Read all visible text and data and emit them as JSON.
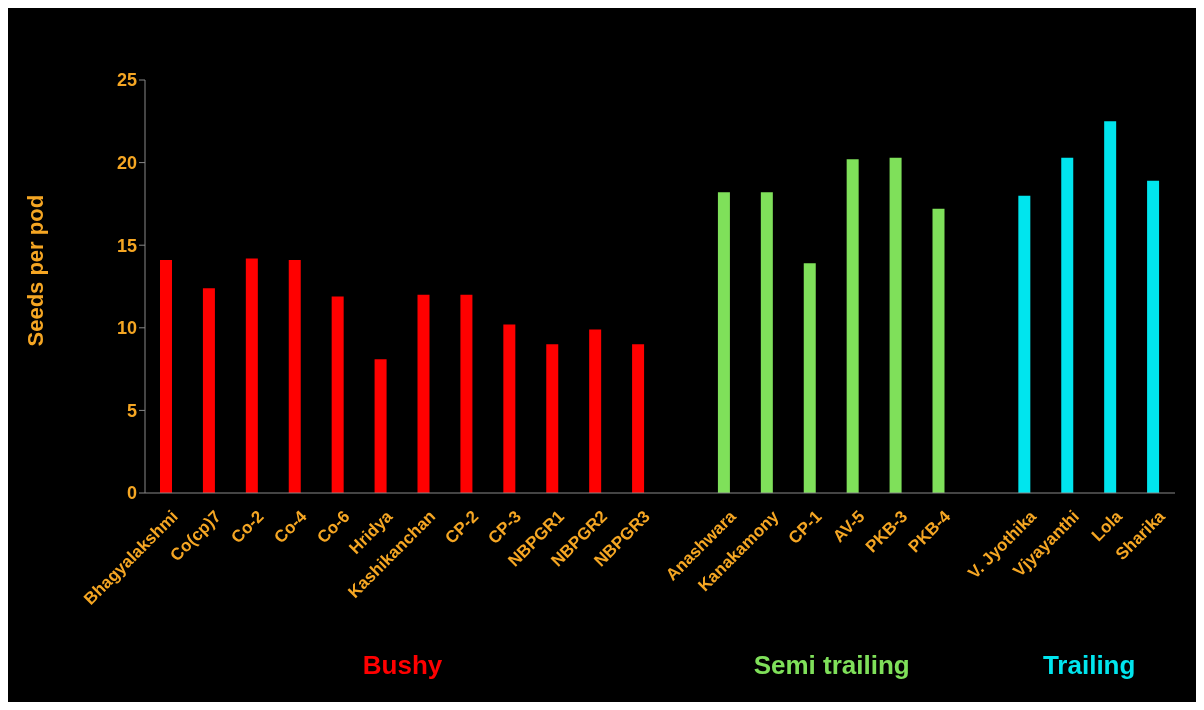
{
  "chart_data": {
    "type": "bar",
    "ylabel": "Seeds per pod",
    "categories": [
      "Bhagyalakshmi",
      "Co(cp)7",
      "Co-2",
      "Co-4",
      "Co-6",
      "Hridya",
      "Kashikanchan",
      "CP-2",
      "CP-3",
      "NBPGR1",
      "NBPGR2",
      "NBPGR3",
      null,
      "Anashwara",
      "Kanakamony",
      "CP-1",
      "AV-5",
      "PKB-3",
      "PKB-4",
      null,
      "V. Jyothika",
      "Vjyayanthi",
      "Lola",
      "Sharika"
    ],
    "values": [
      14.1,
      12.4,
      14.2,
      14.1,
      11.9,
      8.1,
      12.0,
      12.0,
      10.2,
      9.0,
      9.9,
      9.0,
      null,
      18.2,
      18.2,
      13.9,
      20.2,
      20.3,
      17.2,
      null,
      18.0,
      20.3,
      22.5,
      18.9
    ],
    "colors": [
      "#ff0000",
      "#ff0000",
      "#ff0000",
      "#ff0000",
      "#ff0000",
      "#ff0000",
      "#ff0000",
      "#ff0000",
      "#ff0000",
      "#ff0000",
      "#ff0000",
      "#ff0000",
      "#000000",
      "#7fe05a",
      "#7fe05a",
      "#7fe05a",
      "#7fe05a",
      "#7fe05a",
      "#7fe05a",
      "#000000",
      "#00e5ee",
      "#00e5ee",
      "#00e5ee",
      "#00e5ee"
    ],
    "annotations": [
      "Bushy",
      "Semi trailing",
      "Trailing"
    ],
    "ylim": [
      0,
      25
    ],
    "yticks": [
      0,
      5,
      10,
      15,
      20,
      25
    ],
    "grid": false,
    "legend": false
  }
}
